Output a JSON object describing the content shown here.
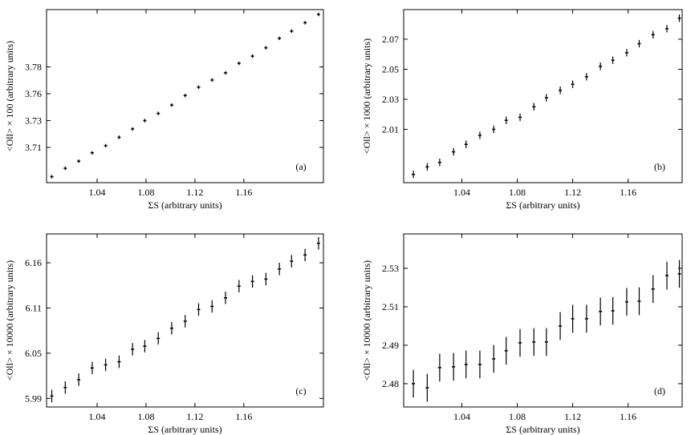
{
  "chart_data": [
    {
      "type": "scatter",
      "xlabel": "ΣS (arbitrary units)",
      "ylabel": "<Oll> × 100 (arbitrary units)",
      "annotation": "(a)",
      "color": "#000000",
      "xlim": [
        0.9987,
        1.225
      ],
      "xticks": [
        1.04,
        1.08,
        1.12,
        1.16
      ],
      "ylim": [
        3.683,
        3.828
      ],
      "yticks": [
        {
          "value": 3.7125,
          "label": "3.71"
        },
        {
          "value": 3.735,
          "label": "3.73"
        },
        {
          "value": 3.7575,
          "label": "3.76"
        },
        {
          "value": 3.78,
          "label": "3.78"
        }
      ],
      "x": [
        1.003,
        1.014,
        1.025,
        1.036,
        1.047,
        1.058,
        1.069,
        1.079,
        1.09,
        1.101,
        1.112,
        1.123,
        1.134,
        1.145,
        1.156,
        1.167,
        1.178,
        1.189,
        1.199,
        1.21,
        1.221
      ],
      "values": [
        3.688,
        3.695,
        3.701,
        3.708,
        3.714,
        3.721,
        3.728,
        3.735,
        3.741,
        3.748,
        3.756,
        3.763,
        3.769,
        3.775,
        3.783,
        3.789,
        3.796,
        3.804,
        3.81,
        3.817,
        3.824
      ],
      "errors": [
        0.0015,
        0.0015,
        0.0015,
        0.0015,
        0.0015,
        0.0015,
        0.0015,
        0.0015,
        0.0015,
        0.0015,
        0.0015,
        0.0015,
        0.0015,
        0.0015,
        0.0015,
        0.0015,
        0.0015,
        0.0015,
        0.0015,
        0.0015,
        0.0015
      ]
    },
    {
      "type": "scatter",
      "xlabel": "ΣS (arbitrary units)",
      "ylabel": "<Oll> × 1000 (arbitrary units)",
      "annotation": "(b)",
      "color": "#000000",
      "xlim": [
        0.998,
        1.199
      ],
      "xticks": [
        1.04,
        1.08,
        1.12,
        1.16
      ],
      "ylim": [
        1.9745,
        2.0897
      ],
      "yticks": [
        2.01,
        2.03,
        2.05,
        2.07
      ],
      "x": [
        1.005,
        1.015,
        1.024,
        1.034,
        1.043,
        1.053,
        1.063,
        1.072,
        1.082,
        1.092,
        1.101,
        1.111,
        1.12,
        1.13,
        1.14,
        1.149,
        1.159,
        1.168,
        1.178,
        1.188,
        1.197
      ],
      "values": [
        1.98,
        1.985,
        1.988,
        1.995,
        2.0,
        2.006,
        2.01,
        2.016,
        2.018,
        2.025,
        2.031,
        2.036,
        2.04,
        2.045,
        2.052,
        2.056,
        2.061,
        2.067,
        2.073,
        2.077,
        2.084
      ],
      "errors": [
        0.0025,
        0.0025,
        0.0025,
        0.0025,
        0.0025,
        0.0025,
        0.0025,
        0.0025,
        0.0025,
        0.0025,
        0.0025,
        0.0025,
        0.0025,
        0.0025,
        0.0025,
        0.0025,
        0.0025,
        0.0025,
        0.0025,
        0.0025,
        0.0025
      ]
    },
    {
      "type": "scatter",
      "xlabel": "ΣS (arbitrary units)",
      "ylabel": "<Oll> × 10000 (arbitrary units)",
      "annotation": "(c)",
      "color": "#000000",
      "xlim": [
        0.9987,
        1.225
      ],
      "xticks": [
        1.04,
        1.08,
        1.12,
        1.16
      ],
      "ylim": [
        5.979,
        6.201
      ],
      "yticks": [
        {
          "value": 5.99,
          "label": "5.99"
        },
        {
          "value": 6.048,
          "label": "6.05"
        },
        {
          "value": 6.106,
          "label": "6.11"
        },
        {
          "value": 6.164,
          "label": "6.16"
        }
      ],
      "x": [
        1.003,
        1.014,
        1.025,
        1.036,
        1.047,
        1.058,
        1.069,
        1.079,
        1.09,
        1.101,
        1.112,
        1.123,
        1.134,
        1.145,
        1.156,
        1.167,
        1.178,
        1.189,
        1.199,
        1.21,
        1.221
      ],
      "values": [
        5.993,
        6.004,
        6.014,
        6.029,
        6.033,
        6.037,
        6.053,
        6.057,
        6.067,
        6.08,
        6.089,
        6.104,
        6.108,
        6.119,
        6.134,
        6.14,
        6.143,
        6.156,
        6.166,
        6.174,
        6.189
      ],
      "errors": [
        0.008,
        0.008,
        0.008,
        0.008,
        0.008,
        0.008,
        0.008,
        0.008,
        0.008,
        0.008,
        0.008,
        0.008,
        0.008,
        0.008,
        0.008,
        0.008,
        0.008,
        0.008,
        0.008,
        0.008,
        0.008
      ]
    },
    {
      "type": "scatter",
      "xlabel": "ΣS (arbitrary units)",
      "ylabel": "<Oll> × 10000 (arbitrary units)",
      "annotation": "(d)",
      "color": "#000000",
      "xlim": [
        0.998,
        1.199
      ],
      "xticks": [
        1.04,
        1.08,
        1.12,
        1.16
      ],
      "ylim": [
        2.4656,
        2.5466
      ],
      "yticks": [
        {
          "value": 2.4765,
          "label": "2.48"
        },
        {
          "value": 2.4945,
          "label": "2.49"
        },
        {
          "value": 2.5125,
          "label": "2.51"
        },
        {
          "value": 2.5305,
          "label": "2.53"
        }
      ],
      "x": [
        1.005,
        1.015,
        1.024,
        1.034,
        1.043,
        1.053,
        1.063,
        1.072,
        1.082,
        1.092,
        1.101,
        1.111,
        1.12,
        1.13,
        1.14,
        1.149,
        1.159,
        1.168,
        1.178,
        1.188,
        1.197
      ],
      "values": [
        2.4765,
        2.4746,
        2.484,
        2.4844,
        2.4855,
        2.4855,
        2.4881,
        2.4919,
        2.4956,
        2.496,
        2.496,
        2.5035,
        2.5069,
        2.5069,
        2.5103,
        2.5106,
        2.5148,
        2.5151,
        2.5208,
        2.5271,
        2.5279
      ],
      "errors": [
        0.0065,
        0.0065,
        0.0065,
        0.0065,
        0.0065,
        0.0065,
        0.0065,
        0.0065,
        0.0065,
        0.0065,
        0.0065,
        0.0065,
        0.0065,
        0.0065,
        0.0065,
        0.0065,
        0.0065,
        0.0065,
        0.0065,
        0.0065,
        0.0065
      ]
    }
  ]
}
